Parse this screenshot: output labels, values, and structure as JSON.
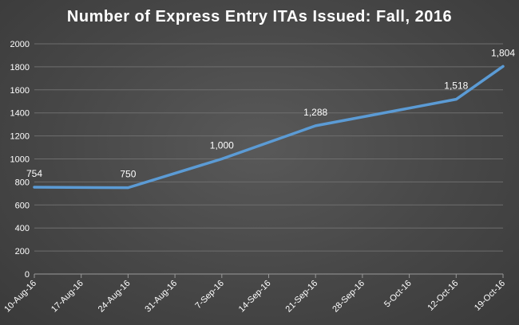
{
  "chart_data": {
    "type": "line",
    "title": "Number of Express Entry ITAs Issued: Fall, 2016",
    "xlabel": "",
    "ylabel": "",
    "ylim": [
      0,
      2000
    ],
    "yticks": [
      0,
      200,
      400,
      600,
      800,
      1000,
      1200,
      1400,
      1600,
      1800,
      2000
    ],
    "grid": true,
    "categories": [
      "10-Aug-16",
      "17-Aug-16",
      "24-Aug-16",
      "31-Aug-16",
      "7-Sep-16",
      "14-Sep-16",
      "21-Sep-16",
      "28-Sep-16",
      "5-Oct-16",
      "12-Oct-16",
      "19-Oct-16"
    ],
    "series": [
      {
        "points": [
          {
            "x": "10-Aug-16",
            "y": 754,
            "label": "754"
          },
          {
            "x": "24-Aug-16",
            "y": 750,
            "label": "750"
          },
          {
            "x": "7-Sep-16",
            "y": 1000,
            "label": "1,000"
          },
          {
            "x": "21-Sep-16",
            "y": 1288,
            "label": "1,288"
          },
          {
            "x": "12-Oct-16",
            "y": 1518,
            "label": "1,518"
          },
          {
            "x": "19-Oct-16",
            "y": 1804,
            "label": "1,804"
          }
        ],
        "color": "#5b9bd5"
      }
    ],
    "colors": {
      "line": "#5b9bd5",
      "grid": "#6e6e6e",
      "text": "#ffffff"
    }
  }
}
